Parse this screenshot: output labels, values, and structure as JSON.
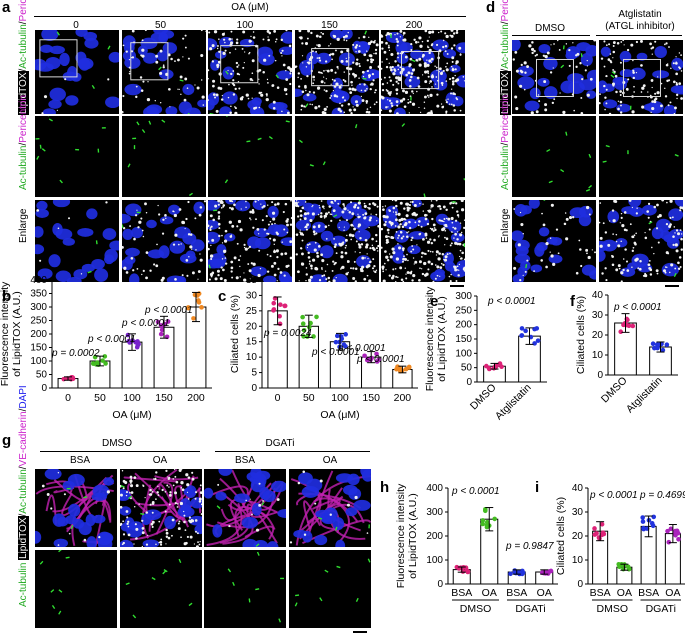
{
  "panels": {
    "a": {
      "letter": "a",
      "oa_header": "OA (μM)",
      "concentrations": [
        "0",
        "50",
        "100",
        "150",
        "200"
      ],
      "row_labels": [
        "Enlarge"
      ],
      "scale_bar": true
    },
    "d": {
      "letter": "d",
      "conditions": [
        "DMSO",
        "Atglistatin",
        "(ATGL inhibitor)"
      ],
      "row_labels": [
        "Enlarge"
      ]
    },
    "g": {
      "letter": "g",
      "group_headers": [
        "DMSO",
        "DGATi"
      ],
      "conditions": [
        "BSA",
        "OA",
        "BSA",
        "OA"
      ]
    },
    "b": {
      "letter": "b"
    },
    "c": {
      "letter": "c"
    },
    "e": {
      "letter": "e"
    },
    "f": {
      "letter": "f"
    },
    "h": {
      "letter": "h"
    },
    "i": {
      "letter": "i"
    }
  },
  "stain_labels": {
    "a_row1": [
      {
        "t": "LipidTOX",
        "c": "#ffffff",
        "bg": "#000000"
      },
      {
        "t": "/",
        "c": "#000000"
      },
      {
        "t": "Ac-tubulin",
        "c": "#22aa22"
      },
      {
        "t": "/",
        "c": "#000000"
      },
      {
        "t": "Pericentrin",
        "c": "#cc22cc"
      },
      {
        "t": "/",
        "c": "#000000"
      },
      {
        "t": "DAPI",
        "c": "#1a1aee"
      }
    ],
    "a_row2": [
      {
        "t": "Ac-tubulin",
        "c": "#22aa22"
      },
      {
        "t": "/",
        "c": "#000000"
      },
      {
        "t": "Pericentrin",
        "c": "#cc22cc"
      }
    ],
    "g_row1": [
      {
        "t": "LipidTOX",
        "c": "#ffffff",
        "bg": "#000000"
      },
      {
        "t": "/",
        "c": "#000000"
      },
      {
        "t": "Ac-tubulin",
        "c": "#22aa22"
      },
      {
        "t": "/",
        "c": "#000000"
      },
      {
        "t": "VE-cadherin",
        "c": "#cc22cc"
      },
      {
        "t": "/",
        "c": "#000000"
      },
      {
        "t": "DAPI",
        "c": "#1a1aee"
      }
    ],
    "g_row2": [
      {
        "t": "Ac-tubulin",
        "c": "#22aa22"
      }
    ]
  },
  "chart_data": [
    {
      "id": "b",
      "type": "bar",
      "ylabel": [
        "Fluorescence intensity",
        "of LipidTOX (A.U.)"
      ],
      "xlabel": "OA (μM)",
      "categories": [
        "0",
        "50",
        "100",
        "150",
        "200"
      ],
      "values": [
        35,
        100,
        170,
        225,
        300
      ],
      "ylim": [
        0,
        400
      ],
      "yticks": [
        0,
        50,
        100,
        150,
        200,
        250,
        300,
        350,
        400
      ],
      "colors": [
        "#dd2277",
        "#44bb22",
        "#7722cc",
        "#aa22bb",
        "#ee8822"
      ],
      "annotations": [
        "p = 0.0002",
        "p < 0.0001",
        "p < 0.0001",
        "p < 0.0001"
      ]
    },
    {
      "id": "c",
      "type": "bar",
      "ylabel": [
        "Ciliated cells (%)"
      ],
      "xlabel": "OA (μM)",
      "categories": [
        "0",
        "50",
        "100",
        "150",
        "200"
      ],
      "values": [
        25,
        20,
        15,
        10,
        6
      ],
      "ylim": [
        0,
        35
      ],
      "yticks": [
        0,
        5,
        10,
        15,
        20,
        25,
        30,
        35
      ],
      "colors": [
        "#dd2277",
        "#44bb22",
        "#2233dd",
        "#aa22bb",
        "#ee8822"
      ],
      "annotations": [
        "p = 0.0024",
        "p < 0.0001",
        "p < 0.0001",
        "p < 0.0001"
      ]
    },
    {
      "id": "e",
      "type": "bar",
      "ylabel": [
        "Fluorescence intensity",
        "of LipidTOX (A.U.)"
      ],
      "categories": [
        "DMSO",
        "Atglistatin"
      ],
      "values": [
        55,
        160
      ],
      "ylim": [
        0,
        300
      ],
      "yticks": [
        0,
        50,
        100,
        150,
        200,
        250,
        300
      ],
      "colors": [
        "#dd2277",
        "#2233dd"
      ],
      "annotations": [
        "p < 0.0001"
      ]
    },
    {
      "id": "f",
      "type": "bar",
      "ylabel": [
        "Ciliated cells (%)"
      ],
      "categories": [
        "DMSO",
        "Atglistatin"
      ],
      "values": [
        26,
        14
      ],
      "ylim": [
        0,
        40
      ],
      "yticks": [
        0,
        10,
        20,
        30,
        40
      ],
      "colors": [
        "#dd2277",
        "#2233dd"
      ],
      "annotations": [
        "p < 0.0001"
      ]
    },
    {
      "id": "h",
      "type": "bar",
      "ylabel": [
        "Fluorescence intensity",
        "of LipidTOX (A.U.)"
      ],
      "categories": [
        "BSA",
        "OA",
        "BSA",
        "OA"
      ],
      "groups": [
        "DMSO",
        "DGATi"
      ],
      "values": [
        60,
        270,
        50,
        50
      ],
      "ylim": [
        0,
        400
      ],
      "yticks": [
        0,
        100,
        200,
        300,
        400
      ],
      "colors": [
        "#dd2277",
        "#44bb22",
        "#2233dd",
        "#aa22bb"
      ],
      "annotations": [
        "p < 0.0001",
        "p = 0.9847"
      ]
    },
    {
      "id": "i",
      "type": "bar",
      "ylabel": [
        "Ciliated cells (%)"
      ],
      "categories": [
        "BSA",
        "OA",
        "BSA",
        "OA"
      ],
      "groups": [
        "DMSO",
        "DGATi"
      ],
      "values": [
        22,
        7,
        24,
        21
      ],
      "ylim": [
        0,
        40
      ],
      "yticks": [
        0,
        10,
        20,
        30,
        40
      ],
      "colors": [
        "#dd2277",
        "#44bb22",
        "#2233dd",
        "#aa22bb"
      ],
      "annotations": [
        "p < 0.0001",
        "p = 0.4699"
      ]
    }
  ]
}
